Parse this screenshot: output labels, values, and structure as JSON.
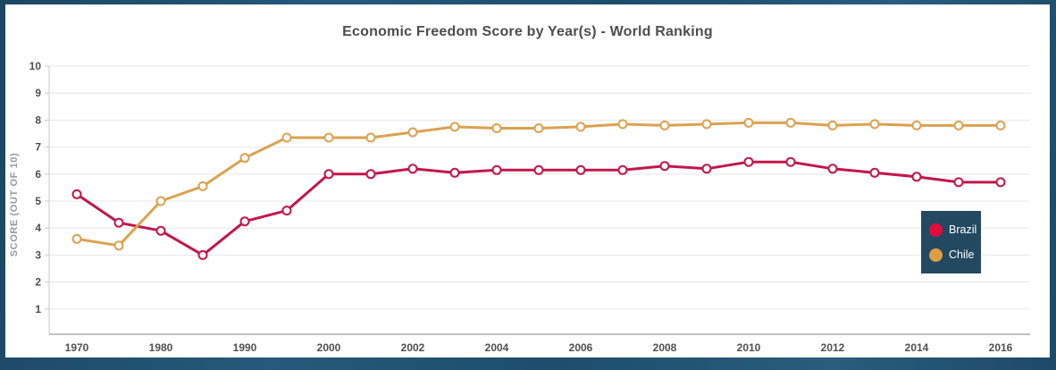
{
  "window": {
    "title": "Economic Freedom Score by Year(s) - World Ranking"
  },
  "chart_data": {
    "type": "line",
    "title": "Economic Freedom Score by Year(s) - World Ranking",
    "xlabel": "",
    "ylabel": "SCORE (OUT OF 10)",
    "ylim": [
      0,
      10
    ],
    "yticks": [
      1,
      2,
      3,
      4,
      5,
      6,
      7,
      8,
      9,
      10
    ],
    "grid": true,
    "x_tick_step": 2,
    "legend_position": "middle-right",
    "categories": [
      "1970",
      "1975",
      "1980",
      "1985",
      "1990",
      "1995",
      "2000",
      "2001",
      "2002",
      "2003",
      "2004",
      "2005",
      "2006",
      "2007",
      "2008",
      "2009",
      "2010",
      "2011",
      "2012",
      "2013",
      "2014",
      "2015",
      "2016"
    ],
    "series": [
      {
        "name": "Brazil",
        "color": "#c2164a",
        "values": [
          5.25,
          4.2,
          3.9,
          3.0,
          4.25,
          4.65,
          6.0,
          6.0,
          6.2,
          6.05,
          6.15,
          6.15,
          6.15,
          6.15,
          6.3,
          6.2,
          6.45,
          6.45,
          6.2,
          6.05,
          5.9,
          5.7,
          5.7
        ]
      },
      {
        "name": "Chile",
        "color": "#dba14f",
        "values": [
          3.6,
          3.35,
          5.0,
          5.55,
          6.6,
          7.35,
          7.35,
          7.35,
          7.55,
          7.75,
          7.7,
          7.7,
          7.75,
          7.85,
          7.8,
          7.85,
          7.9,
          7.9,
          7.8,
          7.85,
          7.8,
          7.8,
          7.8
        ]
      }
    ]
  },
  "legend": {
    "bg": "#224960",
    "text_color": "#ffffff",
    "items": [
      {
        "label": "Brazil",
        "dot_color": "#e30b3c"
      },
      {
        "label": "Chile",
        "dot_color": "#dd9e42"
      }
    ]
  },
  "colors": {
    "frame": "#204d69",
    "panel_bg": "#ffffff",
    "gridline": "#e7e7e7",
    "axis_line": "#c9c9c9",
    "bottom_axis_line": "#c0c0c0",
    "title_text": "#4d4d4d",
    "tick_text": "#4f4f4f",
    "axis_title_text": "#95999e",
    "marker_fill": "#ffffff"
  }
}
